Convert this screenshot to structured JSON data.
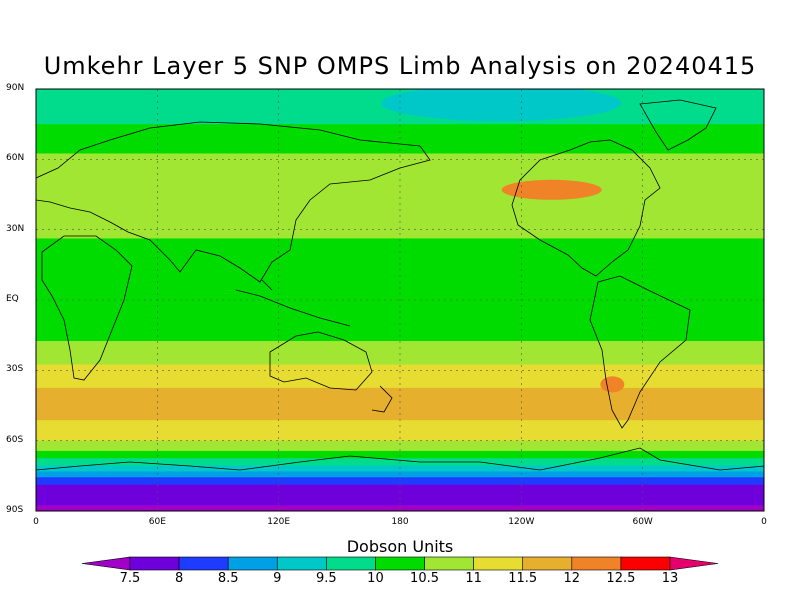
{
  "title": "Umkehr Layer 5 SNP OMPS Limb Analysis on 20240415",
  "map": {
    "projection": "cylindrical equidistant",
    "lat_range": [
      -90,
      90
    ],
    "lon_range": [
      0,
      360
    ],
    "grid": true,
    "y_ticks": [
      {
        "lat": 90,
        "label": "90N"
      },
      {
        "lat": 60,
        "label": "60N"
      },
      {
        "lat": 30,
        "label": "30N"
      },
      {
        "lat": 0,
        "label": "EQ"
      },
      {
        "lat": -30,
        "label": "30S"
      },
      {
        "lat": -60,
        "label": "60S"
      },
      {
        "lat": -90,
        "label": "90S"
      }
    ],
    "x_ticks": [
      {
        "lon": 0,
        "label": "0"
      },
      {
        "lon": 60,
        "label": "60E"
      },
      {
        "lon": 120,
        "label": "120E"
      },
      {
        "lon": 180,
        "label": "180"
      },
      {
        "lon": 240,
        "label": "120W"
      },
      {
        "lon": 300,
        "label": "60W"
      },
      {
        "lon": 360,
        "label": "0"
      }
    ],
    "zonal_mean_profile": [
      {
        "lat": 90,
        "value": 9.5
      },
      {
        "lat": 80,
        "value": 9.8
      },
      {
        "lat": 70,
        "value": 10.2
      },
      {
        "lat": 60,
        "value": 10.6
      },
      {
        "lat": 50,
        "value": 10.8
      },
      {
        "lat": 40,
        "value": 11.0
      },
      {
        "lat": 30,
        "value": 10.6
      },
      {
        "lat": 20,
        "value": 10.3
      },
      {
        "lat": 10,
        "value": 10.1
      },
      {
        "lat": 0,
        "value": 10.0
      },
      {
        "lat": -10,
        "value": 10.2
      },
      {
        "lat": -20,
        "value": 10.6
      },
      {
        "lat": -30,
        "value": 11.1
      },
      {
        "lat": -40,
        "value": 11.6
      },
      {
        "lat": -50,
        "value": 11.6
      },
      {
        "lat": -60,
        "value": 11.0
      },
      {
        "lat": -65,
        "value": 10.4
      },
      {
        "lat": -70,
        "value": 9.6
      },
      {
        "lat": -75,
        "value": 8.6
      },
      {
        "lat": -80,
        "value": 7.8
      },
      {
        "lat": -90,
        "value": 7.4
      }
    ],
    "features": [
      {
        "name": "north-pacific-high",
        "lon": 255,
        "lat": 47,
        "value": 12.1
      },
      {
        "name": "arctic-low",
        "lon": 230,
        "lat": 84,
        "value": 9.3
      },
      {
        "name": "south-atlantic-high",
        "lon": 285,
        "lat": -36,
        "value": 12.1
      }
    ]
  },
  "colorbar": {
    "title": "Dobson Units",
    "levels": [
      7.5,
      8,
      8.5,
      9,
      9.5,
      10,
      10.5,
      11,
      11.5,
      12,
      12.5,
      13
    ],
    "labels": [
      "7.5",
      "8",
      "8.5",
      "9",
      "9.5",
      "10",
      "10.5",
      "11",
      "11.5",
      "12",
      "12.5",
      "13"
    ],
    "colors": [
      "#a000c8",
      "#6e00dc",
      "#1e3cff",
      "#00a0e6",
      "#00c8c8",
      "#00dc8c",
      "#00dc00",
      "#a0e632",
      "#e6dc32",
      "#e6af2d",
      "#f08228",
      "#fa0000",
      "#e6006e"
    ]
  }
}
